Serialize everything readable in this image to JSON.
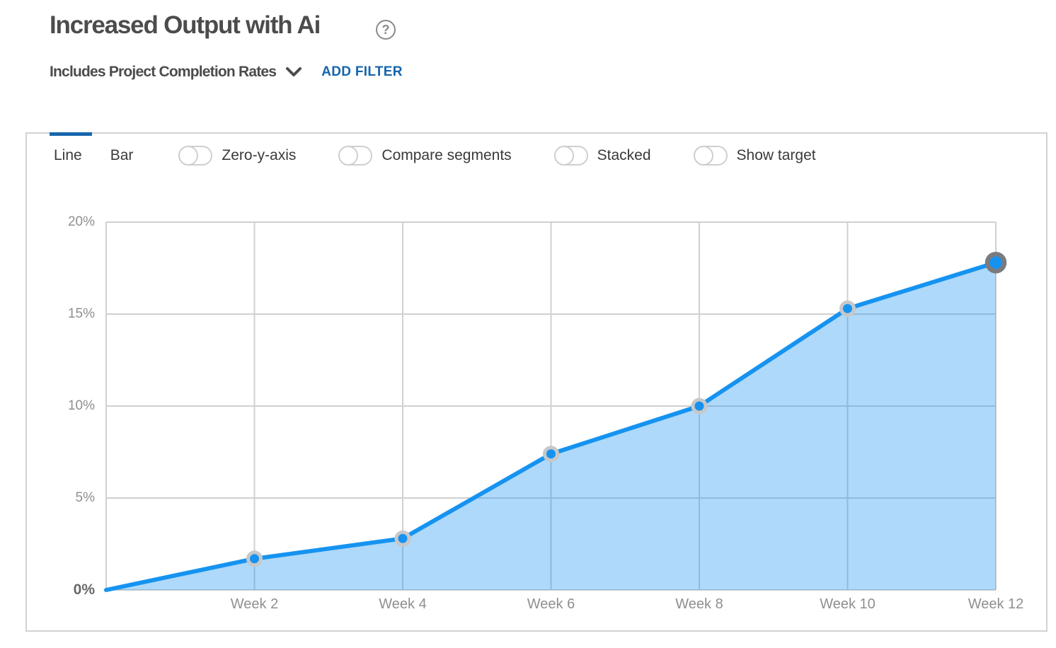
{
  "header": {
    "title": "Increased Output with Ai",
    "help_glyph": "?",
    "segment_filter_label": "Includes Project Completion Rates",
    "add_filter_label": "ADD FILTER"
  },
  "toolbar": {
    "tabs": [
      {
        "label": "Line",
        "active": true
      },
      {
        "label": "Bar",
        "active": false
      }
    ],
    "toggles": [
      {
        "label": "Zero-y-axis",
        "on": false
      },
      {
        "label": "Compare segments",
        "on": false
      },
      {
        "label": "Stacked",
        "on": false
      },
      {
        "label": "Show target",
        "on": false
      }
    ]
  },
  "colors": {
    "accent_blue": "#1667ad",
    "line": "#1693f0",
    "area_fill": "rgba(22,147,240,0.35)",
    "grid": "#d0d0d0",
    "marker_fill": "#1693f0",
    "marker_ring": "#c6c8ca",
    "marker_ring_last": "#797c7f"
  },
  "chart_data": {
    "type": "area",
    "title": "Increased Output with Ai",
    "xlabel": "",
    "ylabel": "",
    "x_weeks": [
      0,
      2,
      4,
      6,
      8,
      10,
      12
    ],
    "values": [
      0,
      1.7,
      2.8,
      7.4,
      10,
      15.3,
      17.8
    ],
    "x_tick_weeks": [
      2,
      4,
      6,
      8,
      10,
      12
    ],
    "x_tick_labels": [
      "Week 2",
      "Week 4",
      "Week 6",
      "Week 8",
      "Week 10",
      "Week 12"
    ],
    "y_ticks": [
      0,
      5,
      10,
      15,
      20
    ],
    "y_tick_labels": [
      "0%",
      "5%",
      "10%",
      "15%",
      "20%"
    ],
    "grid_weeks": [
      0,
      2,
      4,
      6,
      8,
      10,
      12
    ],
    "xlim": [
      0,
      12
    ],
    "ylim": [
      0,
      20
    ],
    "grid": true,
    "legend": "none",
    "last_point_highlighted": true
  }
}
